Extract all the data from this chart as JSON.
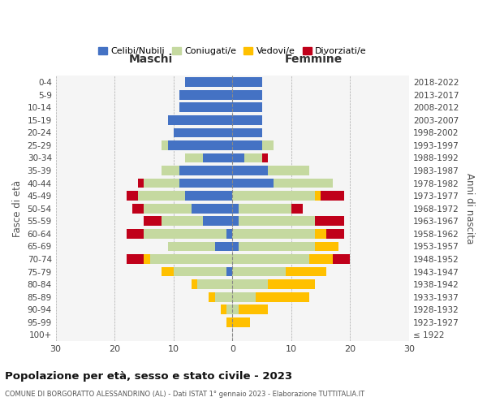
{
  "age_groups": [
    "0-4",
    "5-9",
    "10-14",
    "15-19",
    "20-24",
    "25-29",
    "30-34",
    "35-39",
    "40-44",
    "45-49",
    "50-54",
    "55-59",
    "60-64",
    "65-69",
    "70-74",
    "75-79",
    "80-84",
    "85-89",
    "90-94",
    "95-99",
    "100+"
  ],
  "birth_years": [
    "2018-2022",
    "2013-2017",
    "2008-2012",
    "2003-2007",
    "1998-2002",
    "1993-1997",
    "1988-1992",
    "1983-1987",
    "1978-1982",
    "1973-1977",
    "1968-1972",
    "1963-1967",
    "1958-1962",
    "1953-1957",
    "1948-1952",
    "1943-1947",
    "1938-1942",
    "1933-1937",
    "1928-1932",
    "1923-1927",
    "≤ 1922"
  ],
  "maschi": {
    "celibi": [
      8,
      9,
      9,
      11,
      10,
      11,
      5,
      9,
      9,
      8,
      7,
      5,
      1,
      3,
      0,
      1,
      0,
      0,
      0,
      0,
      0
    ],
    "coniugati": [
      0,
      0,
      0,
      0,
      0,
      1,
      3,
      3,
      6,
      8,
      8,
      7,
      14,
      8,
      14,
      9,
      6,
      3,
      1,
      0,
      0
    ],
    "vedovi": [
      0,
      0,
      0,
      0,
      0,
      0,
      0,
      0,
      0,
      0,
      0,
      0,
      0,
      0,
      1,
      2,
      1,
      1,
      1,
      1,
      0
    ],
    "divorziati": [
      0,
      0,
      0,
      0,
      0,
      0,
      0,
      0,
      1,
      2,
      2,
      3,
      3,
      0,
      3,
      0,
      0,
      0,
      0,
      0,
      0
    ]
  },
  "femmine": {
    "nubili": [
      5,
      5,
      5,
      5,
      5,
      5,
      2,
      6,
      7,
      0,
      1,
      1,
      0,
      1,
      0,
      0,
      0,
      0,
      0,
      0,
      0
    ],
    "coniugate": [
      0,
      0,
      0,
      0,
      0,
      2,
      3,
      7,
      10,
      14,
      9,
      13,
      14,
      13,
      13,
      9,
      6,
      4,
      1,
      0,
      0
    ],
    "vedove": [
      0,
      0,
      0,
      0,
      0,
      0,
      0,
      0,
      0,
      1,
      0,
      0,
      2,
      4,
      4,
      7,
      8,
      9,
      5,
      3,
      0
    ],
    "divorziate": [
      0,
      0,
      0,
      0,
      0,
      0,
      1,
      0,
      0,
      4,
      2,
      5,
      3,
      0,
      3,
      0,
      0,
      0,
      0,
      0,
      0
    ]
  },
  "colors": {
    "celibi": "#4472c4",
    "coniugati": "#c5d9a0",
    "vedovi": "#ffc000",
    "divorziati": "#c0001a"
  },
  "xlim": 30,
  "xticks": [
    -30,
    -20,
    -10,
    0,
    10,
    20,
    30
  ],
  "xticklabels": [
    "30",
    "20",
    "10",
    "0",
    "10",
    "20",
    "30"
  ],
  "title": "Popolazione per età, sesso e stato civile - 2023",
  "subtitle": "COMUNE DI BORGORATTO ALESSANDRINO (AL) - Dati ISTAT 1° gennaio 2023 - Elaborazione TUTTITALIA.IT",
  "legend_labels": [
    "Celibi/Nubili",
    "Coniugati/e",
    "Vedovi/e",
    "Divorziati/e"
  ],
  "maschi_label": "Maschi",
  "femmine_label": "Femmine",
  "fasce_label": "Fasce di età",
  "anni_label": "Anni di nascita",
  "bar_height": 0.75,
  "bg_color": "#f5f5f5"
}
